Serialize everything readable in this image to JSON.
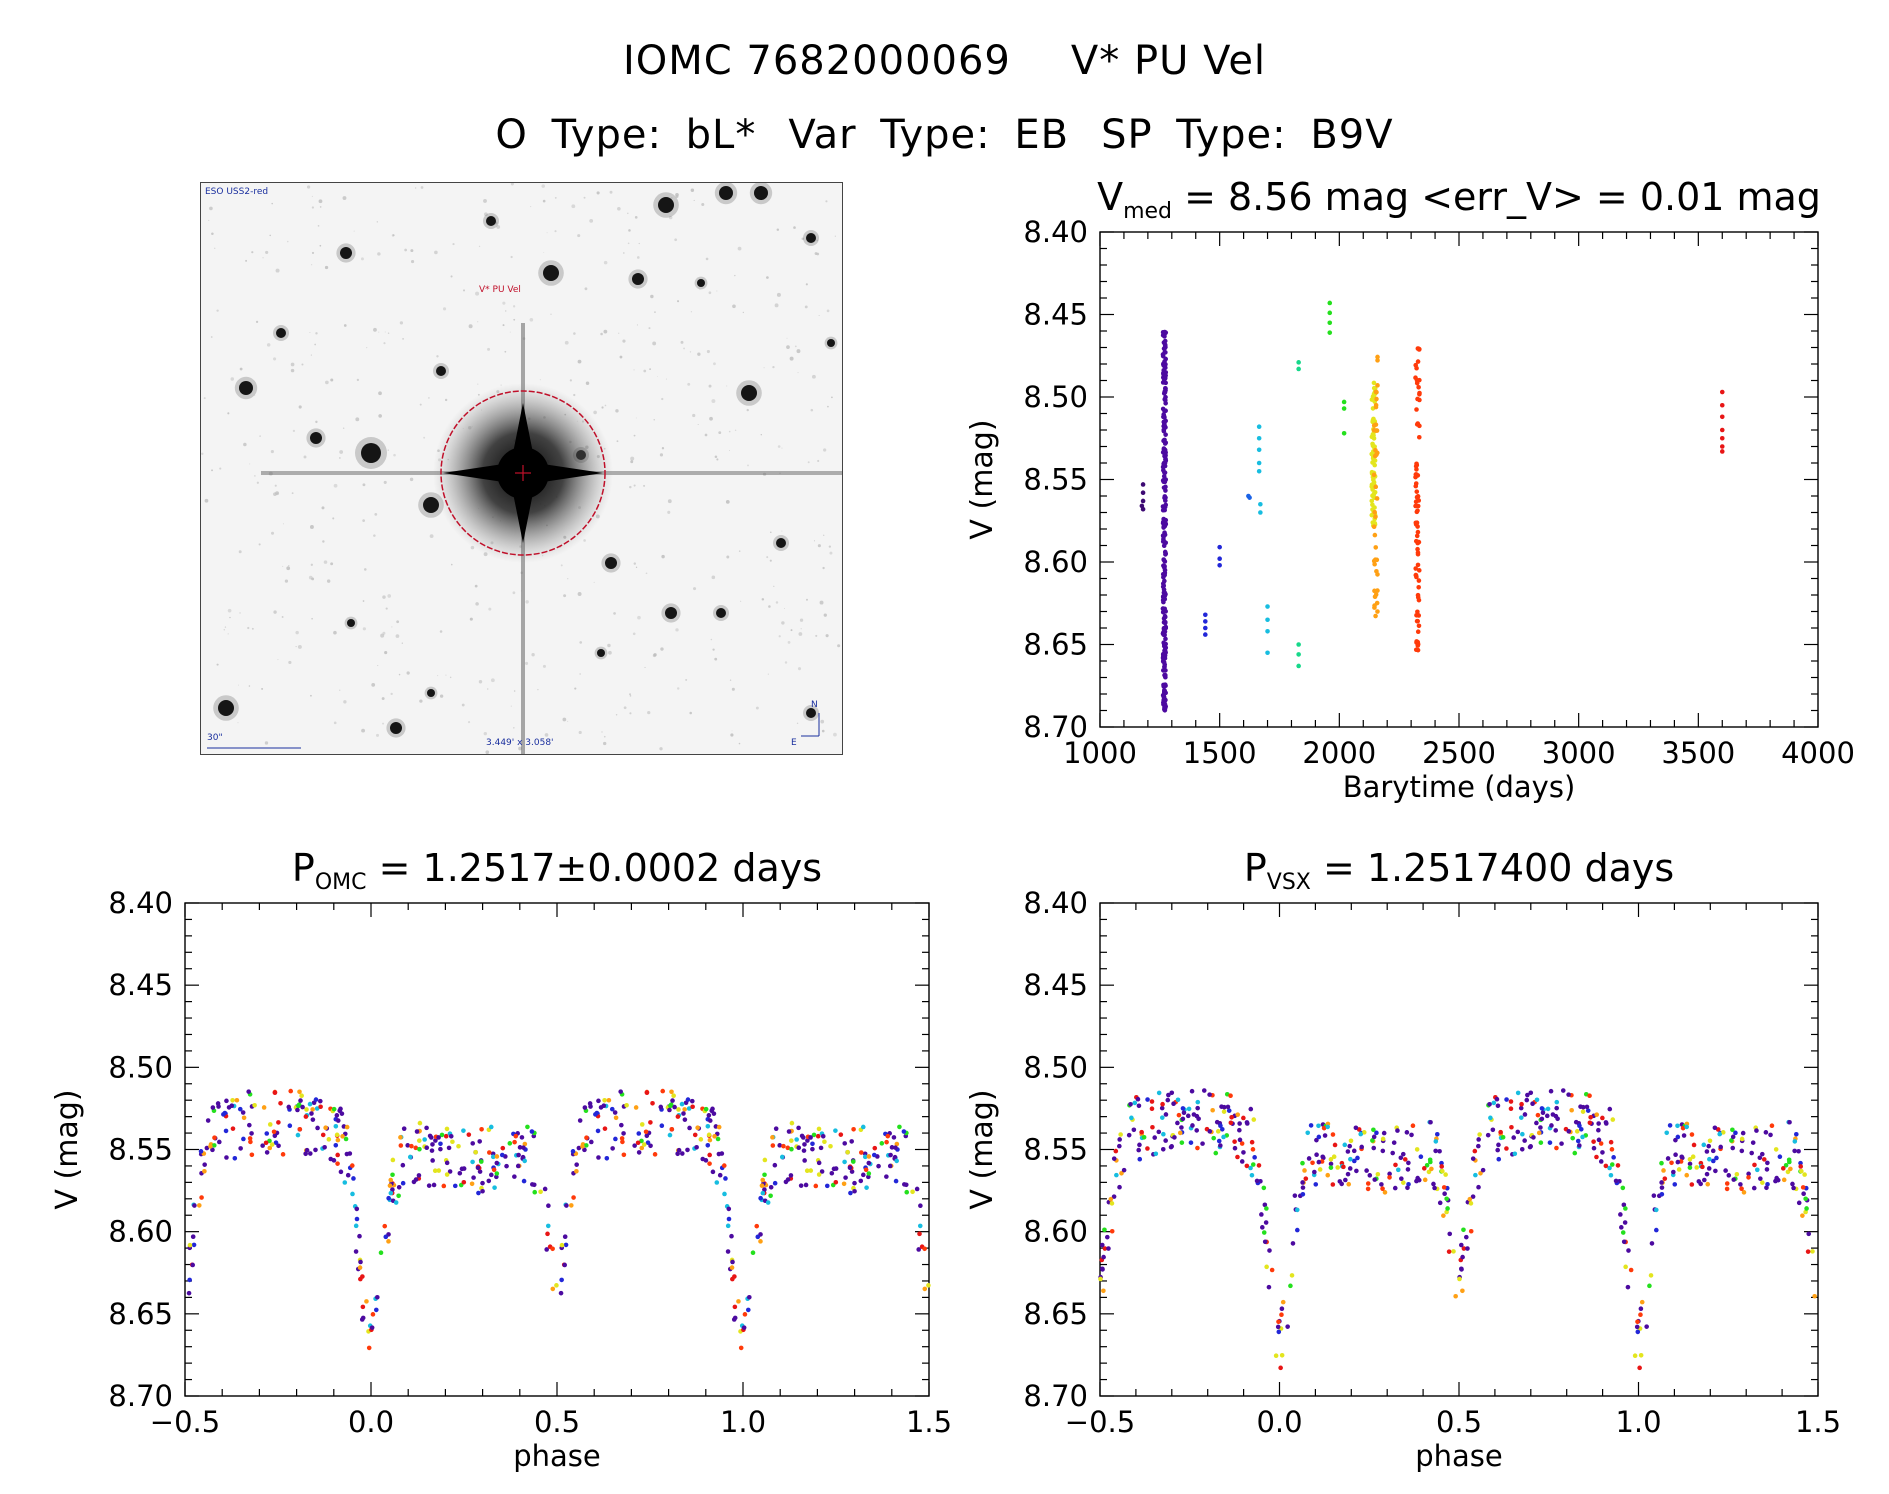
{
  "header": {
    "id": "IOMC 7682000069",
    "name": "V* PU Vel",
    "otype": "O Type: bL*",
    "vartype": "Var Type: EB",
    "sptype": "SP Type: B9V"
  },
  "finder": {
    "survey": "ESO USS2-red",
    "target_label": "V* PU Vel",
    "scale_label": "30\"",
    "fov_label": "3.449' x 3.058'",
    "north_label": "N",
    "east_label": "E",
    "colors": {
      "marker": "#c0102a",
      "annot": "#1a2f9e"
    }
  },
  "chart_data": [
    {
      "type": "scatter",
      "title": "V_med = 8.56 mag <err_V> = 0.01 mag",
      "title_main": "V",
      "title_sub": "med",
      "title_rest": " = 8.56 mag <err_V> = 0.01 mag",
      "xlabel": "Barytime (days)",
      "ylabel": "V (mag)",
      "xlim": [
        1000,
        4000
      ],
      "ylim": [
        8.7,
        8.4
      ],
      "xticks": [
        "1000",
        "1500",
        "2000",
        "2500",
        "3000",
        "3500",
        "4000"
      ],
      "yticks": [
        "8.40",
        "8.45",
        "8.50",
        "8.55",
        "8.60",
        "8.65",
        "8.70"
      ],
      "y_inverted": true,
      "series": [
        {
          "color": "#3d0a73",
          "points": [
            [
              1180,
              8.553
            ],
            [
              1180,
              8.558
            ],
            [
              1180,
              8.563
            ],
            [
              1180,
              8.568
            ],
            [
              1175,
              8.566
            ]
          ]
        },
        {
          "color": "#4c0aa0",
          "band": [
            1263,
            1275
          ],
          "y_range": [
            8.46,
            8.69
          ],
          "count": 260
        },
        {
          "color": "#2227d8",
          "points": [
            [
              1440,
              8.632
            ],
            [
              1440,
              8.636
            ],
            [
              1440,
              8.64
            ],
            [
              1440,
              8.644
            ],
            [
              1500,
              8.591
            ],
            [
              1500,
              8.598
            ],
            [
              1500,
              8.602
            ]
          ]
        },
        {
          "color": "#1a62e6",
          "points": [
            [
              1620,
              8.56
            ],
            [
              1625,
              8.561
            ]
          ]
        },
        {
          "color": "#17bde0",
          "points": [
            [
              1665,
              8.518
            ],
            [
              1665,
              8.525
            ],
            [
              1665,
              8.532
            ],
            [
              1665,
              8.54
            ],
            [
              1665,
              8.545
            ],
            [
              1670,
              8.565
            ],
            [
              1670,
              8.57
            ],
            [
              1700,
              8.627
            ],
            [
              1700,
              8.635
            ],
            [
              1700,
              8.642
            ],
            [
              1700,
              8.655
            ]
          ]
        },
        {
          "color": "#16d88a",
          "points": [
            [
              1830,
              8.479
            ],
            [
              1830,
              8.483
            ],
            [
              1830,
              8.65
            ],
            [
              1830,
              8.656
            ],
            [
              1830,
              8.663
            ]
          ]
        },
        {
          "color": "#24e01d",
          "points": [
            [
              1960,
              8.443
            ],
            [
              1960,
              8.449
            ],
            [
              1960,
              8.455
            ],
            [
              1960,
              8.461
            ],
            [
              2020,
              8.503
            ],
            [
              2020,
              8.507
            ],
            [
              2020,
              8.522
            ]
          ]
        },
        {
          "color": "#e3e51e",
          "band": [
            2135,
            2150
          ],
          "y_range": [
            8.49,
            8.58
          ],
          "count": 70
        },
        {
          "color": "#ffa014",
          "band": [
            2145,
            2160
          ],
          "y_range": [
            8.475,
            8.64
          ],
          "count": 40
        },
        {
          "color": "#ff3a0a",
          "band": [
            2318,
            2335
          ],
          "y_range": [
            8.47,
            8.655
          ],
          "count": 80
        },
        {
          "color": "#e81515",
          "points": [
            [
              3600,
              8.497
            ],
            [
              3600,
              8.505
            ],
            [
              3600,
              8.512
            ],
            [
              3600,
              8.52
            ],
            [
              3600,
              8.525
            ],
            [
              3600,
              8.53
            ],
            [
              3600,
              8.533
            ]
          ]
        }
      ]
    },
    {
      "type": "scatter",
      "title": "P_OMC = 1.2517±0.0002 days",
      "title_main": "P",
      "title_sub": "OMC",
      "title_rest": " = 1.2517±0.0002 days",
      "xlabel": "phase",
      "ylabel": "V (mag)",
      "xlim": [
        -0.5,
        1.5
      ],
      "ylim": [
        8.7,
        8.4
      ],
      "xticks": [
        "−0.5",
        "0.0",
        "0.5",
        "1.0",
        "1.5"
      ],
      "yticks": [
        "8.40",
        "8.45",
        "8.50",
        "8.55",
        "8.60",
        "8.65",
        "8.70"
      ],
      "y_inverted": true,
      "period": 1.2517,
      "model": "eclipsing_binary"
    },
    {
      "type": "scatter",
      "title": "P_VSX = 1.2517400 days",
      "title_main": "P",
      "title_sub": "VSX",
      "title_rest": " = 1.2517400 days",
      "xlabel": "phase",
      "ylabel": "V (mag)",
      "xlim": [
        -0.5,
        1.5
      ],
      "ylim": [
        8.7,
        8.4
      ],
      "xticks": [
        "−0.5",
        "0.0",
        "0.5",
        "1.0",
        "1.5"
      ],
      "yticks": [
        "8.40",
        "8.45",
        "8.50",
        "8.55",
        "8.60",
        "8.65",
        "8.70"
      ],
      "y_inverted": true,
      "period": 1.25174,
      "model": "eclipsing_binary"
    }
  ]
}
